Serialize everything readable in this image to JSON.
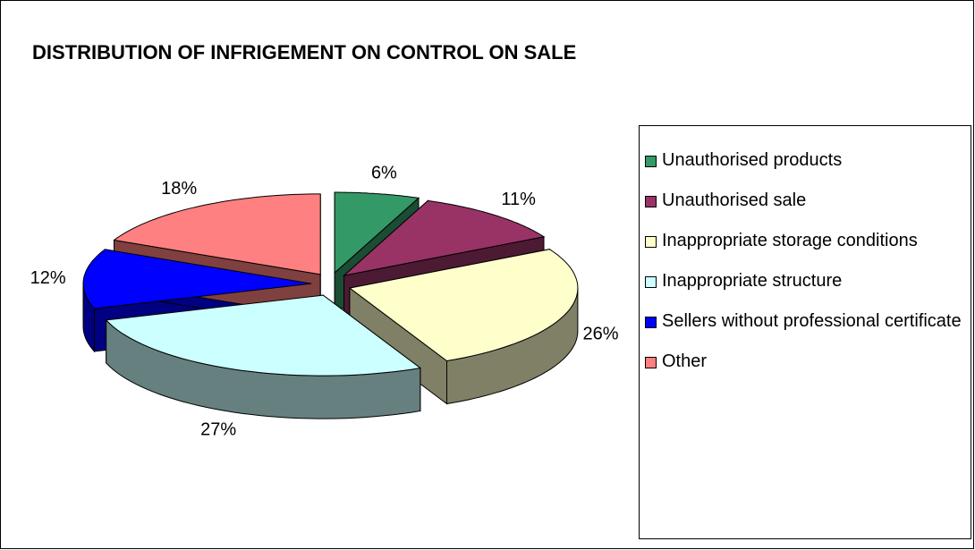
{
  "chart_data": {
    "type": "pie3d",
    "title": "DISTRIBUTION OF INFRIGEMENT ON CONTROL ON SALE",
    "categories": [
      "Unauthorised products",
      "Unauthorised sale",
      "Inappropriate storage conditions",
      "Inappropriate structure",
      "Sellers without professional certificate",
      "Other"
    ],
    "values": [
      6,
      11,
      26,
      27,
      12,
      18
    ],
    "value_labels": [
      "6%",
      "11%",
      "26%",
      "27%",
      "12%",
      "18%"
    ],
    "colors": [
      "#339966",
      "#993366",
      "#FFFFCC",
      "#CCFFFF",
      "#0000FF",
      "#FF8080"
    ],
    "legend": "right"
  }
}
